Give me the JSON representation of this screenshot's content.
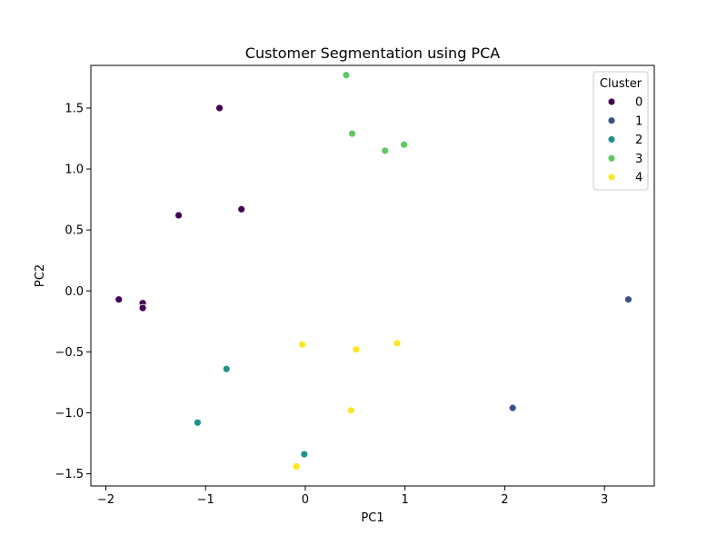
{
  "chart_data": {
    "type": "scatter",
    "title": "Customer Segmentation using PCA",
    "xlabel": "PC1",
    "ylabel": "PC2",
    "xlim": [
      -2.15,
      3.5
    ],
    "ylim": [
      -1.6,
      1.85
    ],
    "xticks": [
      -2,
      -1,
      0,
      1,
      2,
      3
    ],
    "yticks": [
      -1.5,
      -1.0,
      -0.5,
      0.0,
      0.5,
      1.0,
      1.5
    ],
    "xtick_labels": [
      "−2",
      "−1",
      "0",
      "1",
      "2",
      "3"
    ],
    "ytick_labels": [
      "−1.5",
      "−1.0",
      "−0.5",
      "0.0",
      "0.5",
      "1.0",
      "1.5"
    ],
    "grid": false,
    "legend": {
      "title": "Cluster",
      "placement": "top-right"
    },
    "series": [
      {
        "name": "0",
        "color": "#440154",
        "points": [
          {
            "x": -0.86,
            "y": 1.5
          },
          {
            "x": -1.27,
            "y": 0.62
          },
          {
            "x": -0.64,
            "y": 0.67
          },
          {
            "x": -1.87,
            "y": -0.07
          },
          {
            "x": -1.63,
            "y": -0.1
          },
          {
            "x": -1.63,
            "y": -0.14
          }
        ]
      },
      {
        "name": "1",
        "color": "#3b528b",
        "points": [
          {
            "x": 3.24,
            "y": -0.07
          },
          {
            "x": 2.08,
            "y": -0.96
          }
        ]
      },
      {
        "name": "2",
        "color": "#21918c",
        "points": [
          {
            "x": -0.79,
            "y": -0.64
          },
          {
            "x": -1.08,
            "y": -1.08
          },
          {
            "x": -0.01,
            "y": -1.34
          }
        ]
      },
      {
        "name": "3",
        "color": "#5ec962",
        "points": [
          {
            "x": 0.41,
            "y": 1.77
          },
          {
            "x": 0.47,
            "y": 1.29
          },
          {
            "x": 0.8,
            "y": 1.15
          },
          {
            "x": 0.99,
            "y": 1.2
          }
        ]
      },
      {
        "name": "4",
        "color": "#fde725",
        "points": [
          {
            "x": -0.03,
            "y": -0.44
          },
          {
            "x": 0.51,
            "y": -0.48
          },
          {
            "x": 0.92,
            "y": -0.43
          },
          {
            "x": 0.46,
            "y": -0.98
          },
          {
            "x": -0.09,
            "y": -1.44
          }
        ]
      }
    ]
  }
}
